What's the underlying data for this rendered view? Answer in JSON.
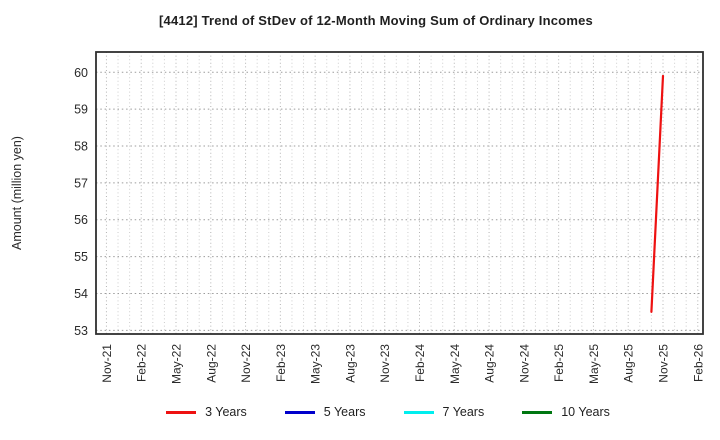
{
  "title": "[4412]  Trend of StDev of 12-Month Moving Sum of Ordinary Incomes",
  "y_axis": {
    "label": "Amount (million yen)",
    "ticks": [
      53,
      54,
      55,
      56,
      57,
      58,
      59,
      60
    ]
  },
  "x_axis": {
    "ticks": [
      "Nov-21",
      "Feb-22",
      "May-22",
      "Aug-22",
      "Nov-22",
      "Feb-23",
      "May-23",
      "Aug-23",
      "Nov-23",
      "Feb-24",
      "May-24",
      "Aug-24",
      "Nov-24",
      "Feb-25",
      "May-25",
      "Aug-25",
      "Nov-25",
      "Feb-26"
    ]
  },
  "legend": {
    "items": [
      {
        "label": "3 Years",
        "color": "#ee1111"
      },
      {
        "label": "5 Years",
        "color": "#0000cc"
      },
      {
        "label": "7 Years",
        "color": "#00eeee"
      },
      {
        "label": "10 Years",
        "color": "#007711"
      }
    ]
  },
  "chart_data": {
    "type": "line",
    "title": "[4412]  Trend of StDev of 12-Month Moving Sum of Ordinary Incomes",
    "xlabel": "",
    "ylabel": "Amount (million yen)",
    "ylim": [
      52.9,
      60.55
    ],
    "x_range_months": [
      -0.9,
      51.45
    ],
    "x_tick_step_months": 3,
    "x_tick_labels": [
      "Nov-21",
      "Feb-22",
      "May-22",
      "Aug-22",
      "Nov-22",
      "Feb-23",
      "May-23",
      "Aug-23",
      "Nov-23",
      "Feb-24",
      "May-24",
      "Aug-24",
      "Nov-24",
      "Feb-25",
      "May-25",
      "Aug-25",
      "Nov-25",
      "Feb-26"
    ],
    "grid": "dotted; vertical line every month, horizontal line every 1 unit",
    "legend_position": "bottom",
    "series": [
      {
        "name": "3 Years",
        "color": "#ee1111",
        "points": [
          {
            "x": "Oct-25",
            "month_index": 47,
            "y": 53.5
          },
          {
            "x": "Nov-25",
            "month_index": 48,
            "y": 59.9
          }
        ]
      },
      {
        "name": "5 Years",
        "color": "#0000cc",
        "points": []
      },
      {
        "name": "7 Years",
        "color": "#00eeee",
        "points": []
      },
      {
        "name": "10 Years",
        "color": "#007711",
        "points": []
      }
    ]
  }
}
